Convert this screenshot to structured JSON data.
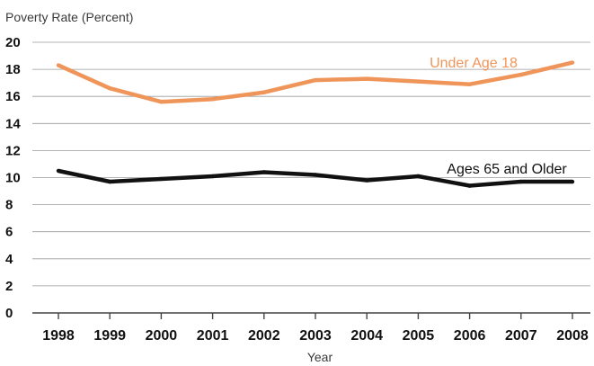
{
  "chart_data": {
    "type": "line",
    "ylabel": "Poverty Rate (Percent)",
    "xlabel": "Year",
    "x": [
      1998,
      1999,
      2000,
      2001,
      2002,
      2003,
      2004,
      2005,
      2006,
      2007,
      2008
    ],
    "x_tick_labels": [
      "1998",
      "1999",
      "2000",
      "2001",
      "2002",
      "2003",
      "2004",
      "2005",
      "2006",
      "2007",
      "2008"
    ],
    "y_ticks": [
      0,
      2,
      4,
      6,
      8,
      10,
      12,
      14,
      16,
      18,
      20
    ],
    "y_tick_labels": [
      "0",
      "2",
      "4",
      "6",
      "8",
      "10",
      "12",
      "14",
      "16",
      "18",
      "20"
    ],
    "ylim": [
      0,
      20
    ],
    "grid": true,
    "series": [
      {
        "name": "Under Age 18",
        "color": "#f0955a",
        "values": [
          18.3,
          16.6,
          15.6,
          15.8,
          16.3,
          17.2,
          17.3,
          17.1,
          16.9,
          17.6,
          18.5
        ]
      },
      {
        "name": "Ages 65 and Older",
        "color": "#111111",
        "values": [
          10.5,
          9.7,
          9.9,
          10.1,
          10.4,
          10.2,
          9.8,
          10.1,
          9.4,
          9.7,
          9.7
        ]
      }
    ]
  }
}
